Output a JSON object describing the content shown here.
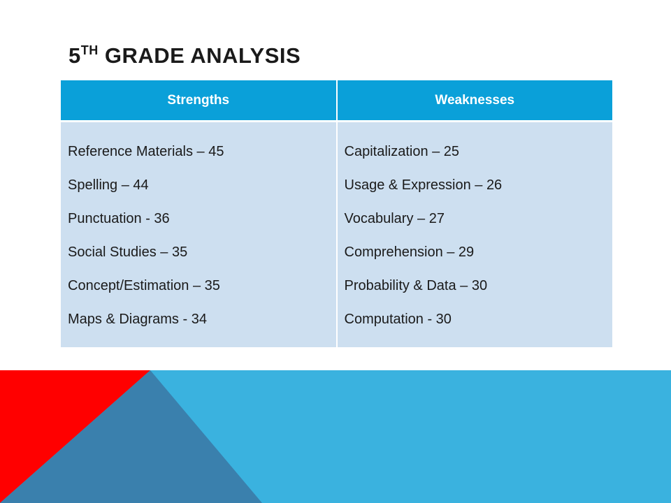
{
  "slide": {
    "title_number": "5",
    "title_suffix": "TH",
    "title_rest": " GRADE ANALYSIS"
  },
  "table": {
    "headers": [
      "Strengths",
      "Weaknesses"
    ],
    "strengths": [
      "Reference Materials – 45",
      "Spelling – 44",
      "Punctuation - 36",
      "Social Studies – 35",
      "Concept/Estimation – 35",
      "Maps & Diagrams - 34"
    ],
    "weaknesses": [
      "Capitalization – 25",
      "Usage & Expression – 26",
      "Vocabulary – 27",
      "Comprehension – 29",
      "Probability & Data – 30",
      "Computation - 30"
    ]
  },
  "colors": {
    "header_blue": "#0aa0d9",
    "cell_light_blue": "#cddff0",
    "band_light_blue": "#3ab2df",
    "band_dark_blue": "#3a80ad",
    "band_red": "#ff0000"
  }
}
